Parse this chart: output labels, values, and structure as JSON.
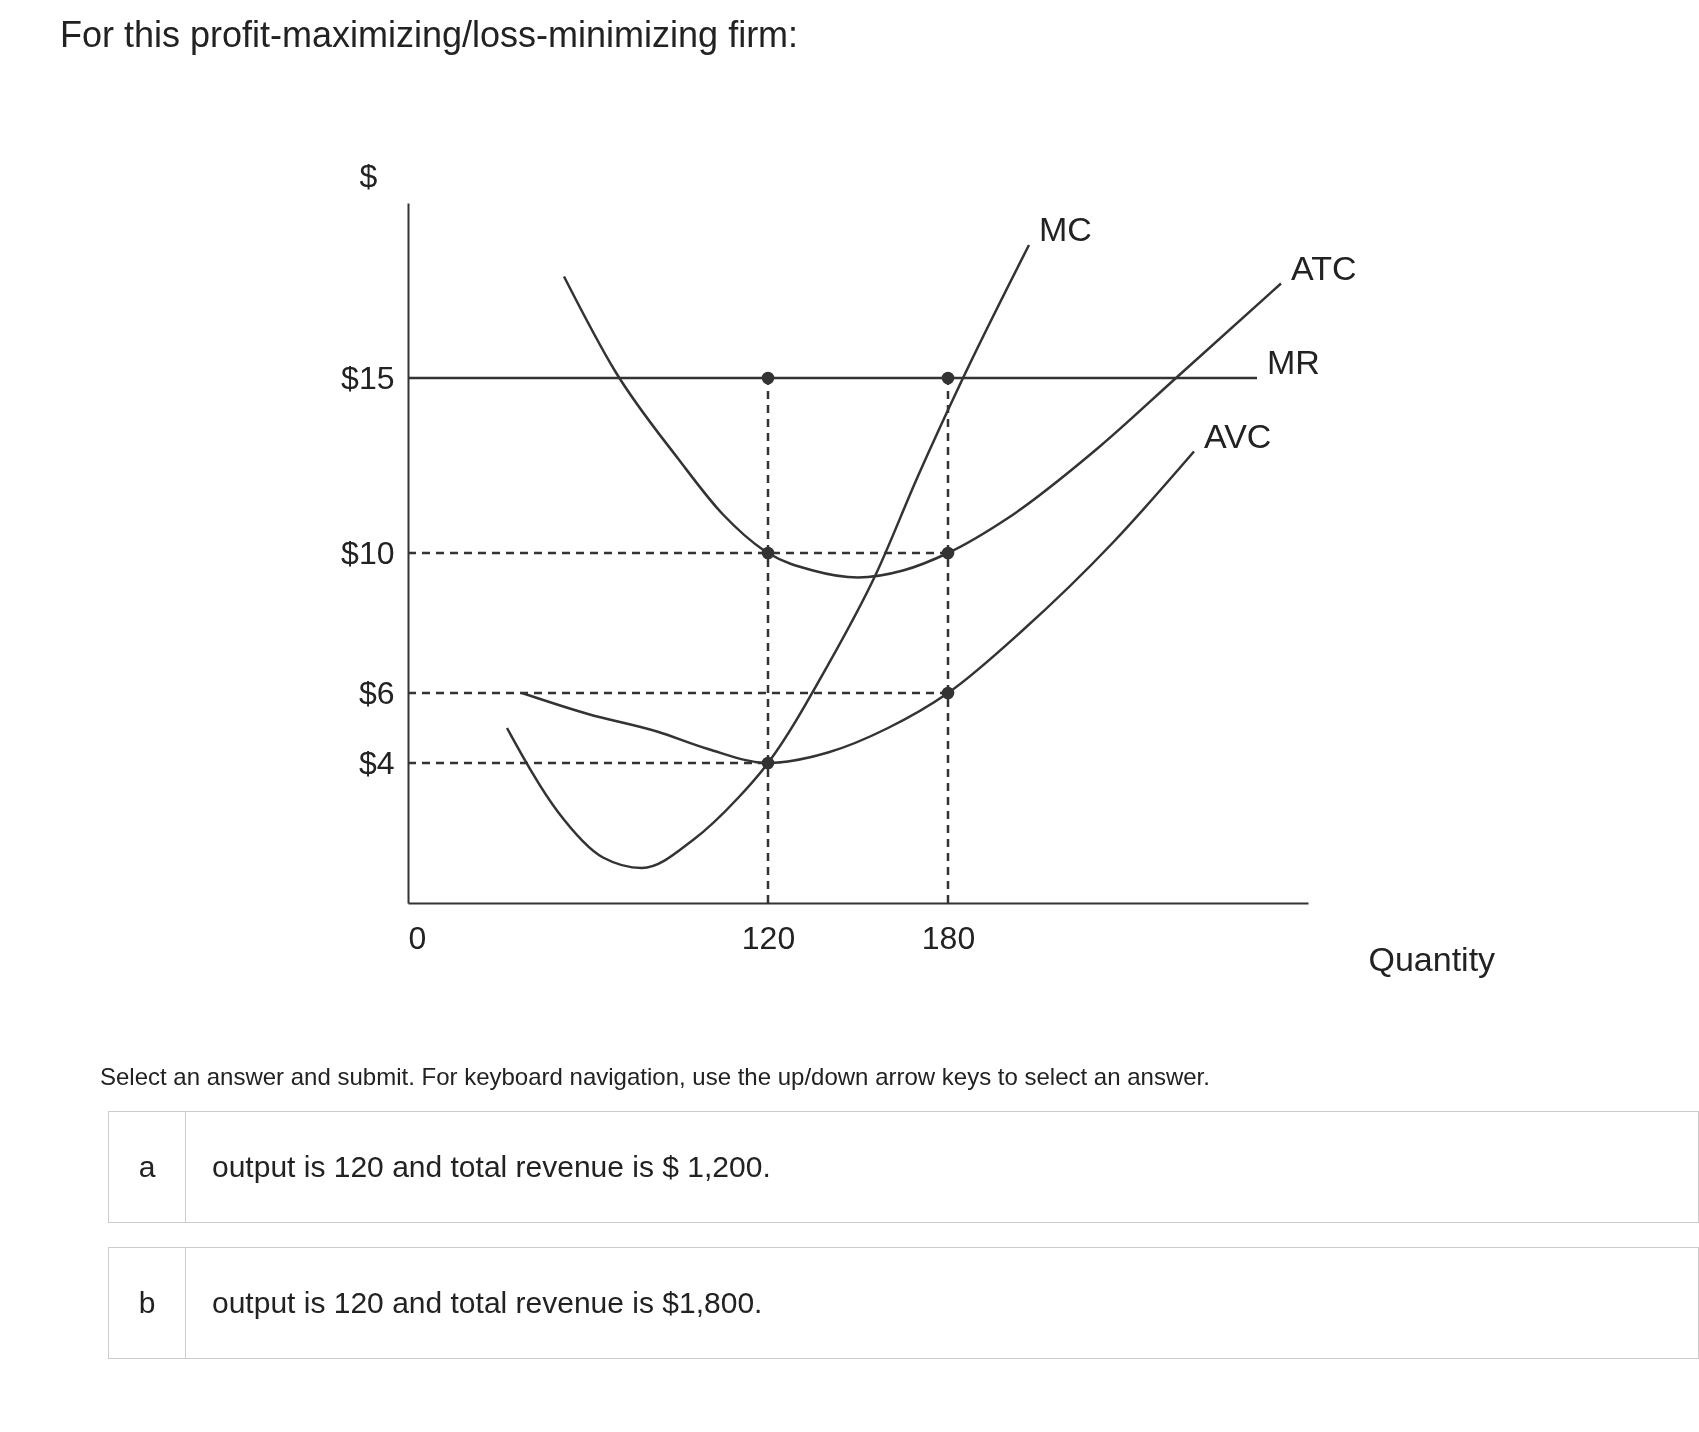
{
  "chart_data": {
    "type": "line",
    "title": "For this profit-maximizing/loss-minimizing firm:",
    "xlabel": "Quantity",
    "ylabel": "$",
    "xlim": [
      0,
      300
    ],
    "ylim": [
      0,
      20
    ],
    "xticks": [
      0,
      120,
      180
    ],
    "yticks": [
      {
        "value": 4,
        "label": "$4"
      },
      {
        "value": 6,
        "label": "$6"
      },
      {
        "value": 10,
        "label": "$10"
      },
      {
        "value": 15,
        "label": "$15"
      }
    ],
    "grid": false,
    "line_style": "solid",
    "series": [
      {
        "name": "MC",
        "color": "#333333",
        "x": [
          33,
          50,
          65,
          78,
          95,
          110,
          120,
          140,
          156,
          170,
          185,
          207
        ],
        "values": [
          5,
          2.6,
          1.3,
          1,
          1.8,
          3,
          4,
          6.8,
          9.4,
          12.2,
          15,
          18.8
        ]
      },
      {
        "name": "ATC",
        "color": "#333333",
        "x": [
          52,
          69,
          90,
          105,
          120,
          135,
          150,
          165,
          180,
          200,
          230,
          256,
          291
        ],
        "values": [
          17.9,
          15.2,
          12.7,
          11.1,
          10,
          9.5,
          9.3,
          9.5,
          10,
          11,
          13,
          15,
          17.7
        ]
      },
      {
        "name": "AVC",
        "color": "#333333",
        "x": [
          38,
          60,
          83,
          100,
          120,
          140,
          160,
          180,
          205,
          235,
          262
        ],
        "values": [
          6,
          5.4,
          4.9,
          4.4,
          4,
          4.3,
          5,
          6,
          7.8,
          10.3,
          12.9
        ]
      },
      {
        "name": "MR",
        "color": "#333333",
        "x": [
          0,
          283
        ],
        "values": [
          15,
          15
        ]
      },
      {
        "type": "line",
        "line_style": "dashed",
        "color": "#333333",
        "x": [
          0,
          180
        ],
        "values": [
          10,
          10
        ]
      },
      {
        "type": "line",
        "line_style": "dashed",
        "color": "#333333",
        "x": [
          0,
          180
        ],
        "values": [
          6,
          6
        ]
      },
      {
        "type": "line",
        "line_style": "dashed",
        "color": "#333333",
        "x": [
          0,
          120
        ],
        "values": [
          4,
          4
        ]
      },
      {
        "type": "line",
        "line_style": "dashed",
        "color": "#333333",
        "x": [
          120,
          120
        ],
        "values": [
          0,
          15
        ]
      },
      {
        "type": "line",
        "line_style": "dashed",
        "color": "#333333",
        "x": [
          180,
          180
        ],
        "values": [
          0,
          15
        ]
      },
      {
        "type": "scatter",
        "marker": "circle",
        "color": "#333333",
        "x": [
          120,
          180,
          120,
          180,
          180,
          120
        ],
        "values": [
          15,
          15,
          10,
          10,
          6,
          4
        ]
      }
    ],
    "annotations": [
      "Select an answer and submit. For keyboard navigation, use the up/down arrow keys to select an answer.",
      "a",
      "output is 120 and total revenue is $ 1,200.",
      "b",
      "output is 120 and total revenue is $1,800."
    ]
  }
}
